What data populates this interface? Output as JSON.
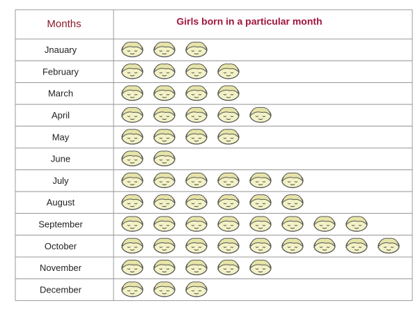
{
  "chart_data": {
    "type": "pictograph",
    "category_header": "Months",
    "title": "Girls born in a particular month",
    "categories": [
      "Jnauary",
      "February",
      "March",
      "April",
      "May",
      "June",
      "July",
      "August",
      "September",
      "October",
      "November",
      "December"
    ],
    "values": [
      3,
      4,
      4,
      5,
      4,
      2,
      6,
      6,
      8,
      9,
      5,
      3
    ],
    "color": "#f3f2c6"
  }
}
